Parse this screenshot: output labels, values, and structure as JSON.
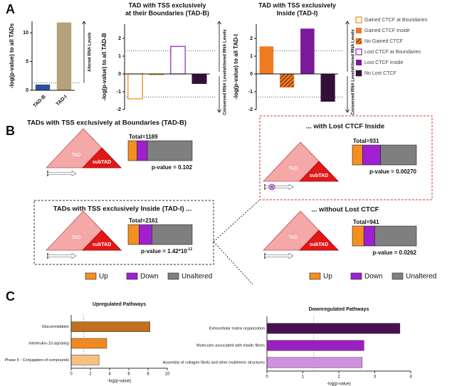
{
  "panel_labels": [
    "A",
    "B",
    "C"
  ],
  "chart_data": [
    {
      "type": "bar",
      "ylabel": "-log(p-value) to all TADs",
      "categories": [
        "TAD-B",
        "TAD-I"
      ],
      "values": [
        1.0,
        11.8
      ],
      "colors": [
        "#2e4fa0",
        "#b5a17a"
      ],
      "fills": [
        "solid",
        "solid"
      ],
      "ylim": [
        0,
        12
      ],
      "yticks": [
        0,
        5,
        10
      ],
      "reference_lines": [
        1.3
      ],
      "annotations": [
        "Altered RNA Levels"
      ]
    },
    {
      "type": "bar",
      "title": [
        "TAD with TSS exclusively",
        "at their Boundaries (TAD-B)"
      ],
      "ylabel": "-log(p-value) to all TAD-B",
      "categories": [
        null,
        null,
        null,
        null
      ],
      "values": [
        -1.4,
        -0.05,
        1.55,
        -0.55
      ],
      "colors": [
        "#f39020",
        "#f39020",
        "#9a30c0",
        "#3a1040"
      ],
      "fills": [
        "outline",
        "hatched",
        "outline",
        "hatched"
      ],
      "ylim": [
        -2,
        2.8
      ],
      "yticks": [
        -2,
        -1,
        0,
        1,
        2
      ],
      "reference_lines": [
        1.3,
        -1.3
      ],
      "annotations": [
        "Altered RNA Levels",
        "Conserved RNA Levels"
      ]
    },
    {
      "type": "bar",
      "title": [
        "TAD with TSS exclusively",
        "Inside (TAD-I)"
      ],
      "ylabel": "-log(p-value) to all TAD-I",
      "categories": [
        null,
        null,
        null,
        null
      ],
      "values": [
        1.55,
        -0.75,
        2.55,
        -1.55
      ],
      "colors": [
        "#f07a20",
        "#f07a20",
        "#7a1a9a",
        "#3a1040"
      ],
      "fills": [
        "solid",
        "hatched",
        "solid",
        "hatched"
      ],
      "ylim": [
        -2,
        2.8
      ],
      "yticks": [
        -2,
        -1,
        0,
        1,
        2
      ],
      "reference_lines": [
        1.3,
        -1.3
      ],
      "annotations": [
        "Altered RNA Levels",
        "Conserved RNA Levels"
      ]
    },
    {
      "type": "hbar",
      "title": "Upregulated Pathways",
      "xlabel": "-log(p-value)",
      "categories": [
        "Glucuronidation",
        "Interleukin-10 signaling",
        "Phase II - Conjugation of compounds"
      ],
      "values": [
        8.2,
        3.7,
        2.9
      ],
      "colors": [
        "#c07020",
        "#f08a20",
        "#f8c080"
      ],
      "xlim": [
        0,
        10
      ],
      "xticks": [
        0,
        2,
        4,
        6,
        8,
        10
      ],
      "reference_lines": [
        1.3
      ]
    },
    {
      "type": "hbar",
      "title": "Downregulated Pathways",
      "xlabel": "-log(p-value)",
      "categories": [
        "Extracellular matrix organization",
        "Molecules associated with elastic fibres",
        "Assembly of collagen fibrils and other multimeric structures"
      ],
      "values": [
        3.7,
        2.7,
        2.65
      ],
      "colors": [
        "#4a1050",
        "#9a20c0",
        "#d090e0"
      ],
      "xlim": [
        0,
        4
      ],
      "xticks": [
        0,
        1,
        2,
        3,
        4
      ],
      "reference_lines": [
        1.3
      ]
    }
  ],
  "legend": [
    {
      "name": "Gained CTCF at Boundaries",
      "color": "#f39020",
      "fill": "outline"
    },
    {
      "name": "Gained CTCF Inside",
      "color": "#f07a20",
      "fill": "solid"
    },
    {
      "name": "No Gained CTCF",
      "color": "#f07a20",
      "fill": "hatched"
    },
    {
      "name": "Lost CTCF at Boundaries",
      "color": "#9a30c0",
      "fill": "outline"
    },
    {
      "name": "Lost CTCF Inside",
      "color": "#7a1a9a",
      "fill": "solid"
    },
    {
      "name": "No Lost CTCF",
      "color": "#3a1040",
      "fill": "hatched"
    }
  ],
  "panel_b": {
    "diagram_labels": [
      "TAD",
      "subTAD"
    ],
    "segment_names": [
      "Up",
      "Down",
      "Unaltered"
    ],
    "segment_colors": [
      "#f39020",
      "#a020d0",
      "#7f7f7f"
    ],
    "boxes": [
      {
        "title": "TADs with TSS exclusively at Boundaries (TAD-B)",
        "total": "Total=1189",
        "p_value": {
          "text": "p-value = 0.102"
        },
        "shares": [
          14,
          16,
          70
        ]
      },
      {
        "title": "TADs with TSS exclusively Inside (TAD-I) ...",
        "total": "Total=2161",
        "p_value": {
          "text": "p-value = 1.42*10",
          "sup": "-12"
        },
        "shares": [
          17,
          20,
          63
        ]
      },
      {
        "title": "... with Lost CTCF Inside",
        "total": "Total=931",
        "p_value": {
          "text": "p-value = 0.00270"
        },
        "shares": [
          16,
          28,
          56
        ]
      },
      {
        "title": "... without Lost CTCF",
        "total": "Total=941",
        "p_value": {
          "text": "p-value = 0.0262"
        },
        "shares": [
          18,
          17,
          65
        ]
      }
    ]
  }
}
